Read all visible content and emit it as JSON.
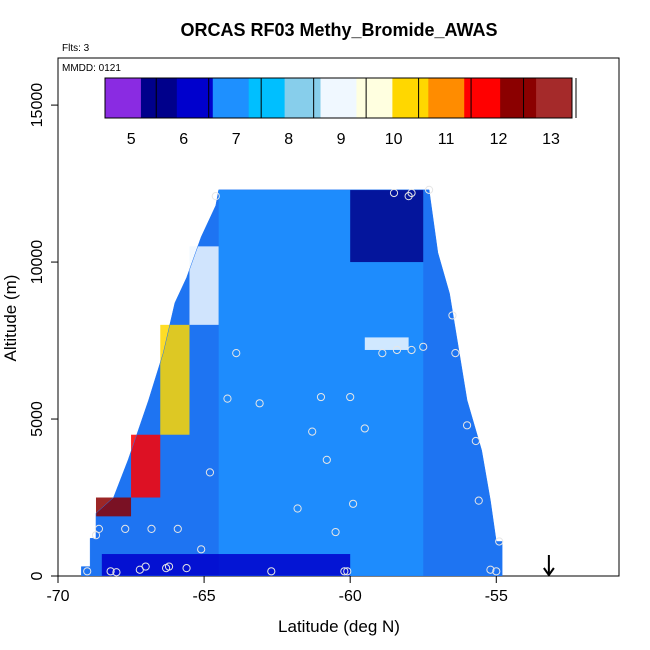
{
  "chart_data": {
    "type": "heatmap",
    "title": "ORCAS RF03 Methy_Bromide_AWAS",
    "annotations": {
      "flights": "Flts: 3",
      "date": "MMDD: 0121"
    },
    "xlabel": "Latitude (deg N)",
    "ylabel": "Altitude (m)",
    "xlim": [
      -70,
      -50.8
    ],
    "ylim": [
      0,
      16500
    ],
    "xticks": [
      -70,
      -65,
      -60,
      -55
    ],
    "yticks": [
      0,
      5000,
      10000,
      15000
    ],
    "grid": false,
    "colorbar": {
      "placement": "top",
      "range": [
        4.5,
        13.4
      ],
      "ticks": [
        5,
        6,
        7,
        8,
        9,
        10,
        11,
        12,
        13
      ],
      "colors": [
        "#8A2BE2",
        "#00008B",
        "#0000CD",
        "#1E90FF",
        "#00BFFF",
        "#87CEEB",
        "#F0F8FF",
        "#FFFFE0",
        "#FFD700",
        "#FF8C00",
        "#FF0000",
        "#8B0000",
        "#A52A2A"
      ]
    },
    "domain_outline": [
      [
        -69.2,
        0
      ],
      [
        -69.2,
        300
      ],
      [
        -68.9,
        300
      ],
      [
        -68.9,
        1200
      ],
      [
        -68.7,
        1200
      ],
      [
        -68.7,
        2000
      ],
      [
        -68.1,
        2500
      ],
      [
        -67.6,
        3700
      ],
      [
        -66.9,
        5600
      ],
      [
        -66.4,
        7100
      ],
      [
        -66.0,
        8700
      ],
      [
        -65.6,
        9500
      ],
      [
        -65.1,
        10800
      ],
      [
        -64.6,
        11800
      ],
      [
        -64.5,
        12300
      ],
      [
        -57.3,
        12300
      ],
      [
        -57.0,
        10300
      ],
      [
        -56.6,
        9000
      ],
      [
        -56.3,
        7300
      ],
      [
        -56.0,
        5600
      ],
      [
        -55.5,
        4000
      ],
      [
        -55.2,
        2400
      ],
      [
        -55.0,
        1100
      ],
      [
        -54.8,
        1100
      ],
      [
        -54.8,
        0
      ]
    ],
    "cells_description_values": [
      {
        "lat_range": [
          -68.7,
          -67.5
        ],
        "alt_range": [
          1900,
          2500
        ],
        "value": 12.5
      },
      {
        "lat_range": [
          -67.5,
          -66.5
        ],
        "alt_range": [
          2500,
          4500
        ],
        "value": 11.5
      },
      {
        "lat_range": [
          -66.5,
          -65.5
        ],
        "alt_range": [
          4500,
          8000
        ],
        "value": 10.5
      },
      {
        "lat_range": [
          -65.5,
          -64.5
        ],
        "alt_range": [
          8000,
          10500
        ],
        "value": 9.0
      },
      {
        "lat_range": [
          -64.5,
          -57.5
        ],
        "alt_range": [
          0,
          12300
        ],
        "value": 7.2
      },
      {
        "lat_range": [
          -60.0,
          -57.5
        ],
        "alt_range": [
          10000,
          12300
        ],
        "value": 5.5
      },
      {
        "lat_range": [
          -59.5,
          -58.0
        ],
        "alt_range": [
          7200,
          7600
        ],
        "value": 9.2
      },
      {
        "lat_range": [
          -68.5,
          -60.0
        ],
        "alt_range": [
          0,
          700
        ],
        "value": 6.0
      }
    ],
    "sample_points": [
      {
        "x": -69.0,
        "y": 150
      },
      {
        "x": -68.7,
        "y": 1300
      },
      {
        "x": -68.6,
        "y": 1500
      },
      {
        "x": -68.2,
        "y": 150
      },
      {
        "x": -68.0,
        "y": 120
      },
      {
        "x": -67.7,
        "y": 1500
      },
      {
        "x": -67.2,
        "y": 200
      },
      {
        "x": -67.0,
        "y": 300
      },
      {
        "x": -66.8,
        "y": 1500
      },
      {
        "x": -66.3,
        "y": 250
      },
      {
        "x": -66.2,
        "y": 300
      },
      {
        "x": -65.9,
        "y": 1500
      },
      {
        "x": -65.6,
        "y": 250
      },
      {
        "x": -65.1,
        "y": 850
      },
      {
        "x": -64.8,
        "y": 3300
      },
      {
        "x": -64.6,
        "y": 12100
      },
      {
        "x": -64.2,
        "y": 5650
      },
      {
        "x": -63.9,
        "y": 7100
      },
      {
        "x": -63.1,
        "y": 5500
      },
      {
        "x": -62.7,
        "y": 150
      },
      {
        "x": -61.8,
        "y": 2150
      },
      {
        "x": -61.3,
        "y": 4600
      },
      {
        "x": -61.0,
        "y": 5700
      },
      {
        "x": -60.8,
        "y": 3700
      },
      {
        "x": -60.5,
        "y": 1400
      },
      {
        "x": -60.2,
        "y": 150
      },
      {
        "x": -60.1,
        "y": 150
      },
      {
        "x": -60.0,
        "y": 5700
      },
      {
        "x": -59.9,
        "y": 2300
      },
      {
        "x": -59.5,
        "y": 4700
      },
      {
        "x": -58.9,
        "y": 7100
      },
      {
        "x": -58.5,
        "y": 12200
      },
      {
        "x": -58.4,
        "y": 7200
      },
      {
        "x": -58.0,
        "y": 12100
      },
      {
        "x": -57.9,
        "y": 12200
      },
      {
        "x": -57.9,
        "y": 7200
      },
      {
        "x": -57.5,
        "y": 7300
      },
      {
        "x": -57.3,
        "y": 12300
      },
      {
        "x": -56.5,
        "y": 8300
      },
      {
        "x": -56.4,
        "y": 7100
      },
      {
        "x": -56.0,
        "y": 4800
      },
      {
        "x": -55.7,
        "y": 4300
      },
      {
        "x": -55.6,
        "y": 2400
      },
      {
        "x": -55.2,
        "y": 200
      },
      {
        "x": -55.0,
        "y": 150
      },
      {
        "x": -54.9,
        "y": 1100
      }
    ],
    "marker_arrow_x": -53.2
  }
}
